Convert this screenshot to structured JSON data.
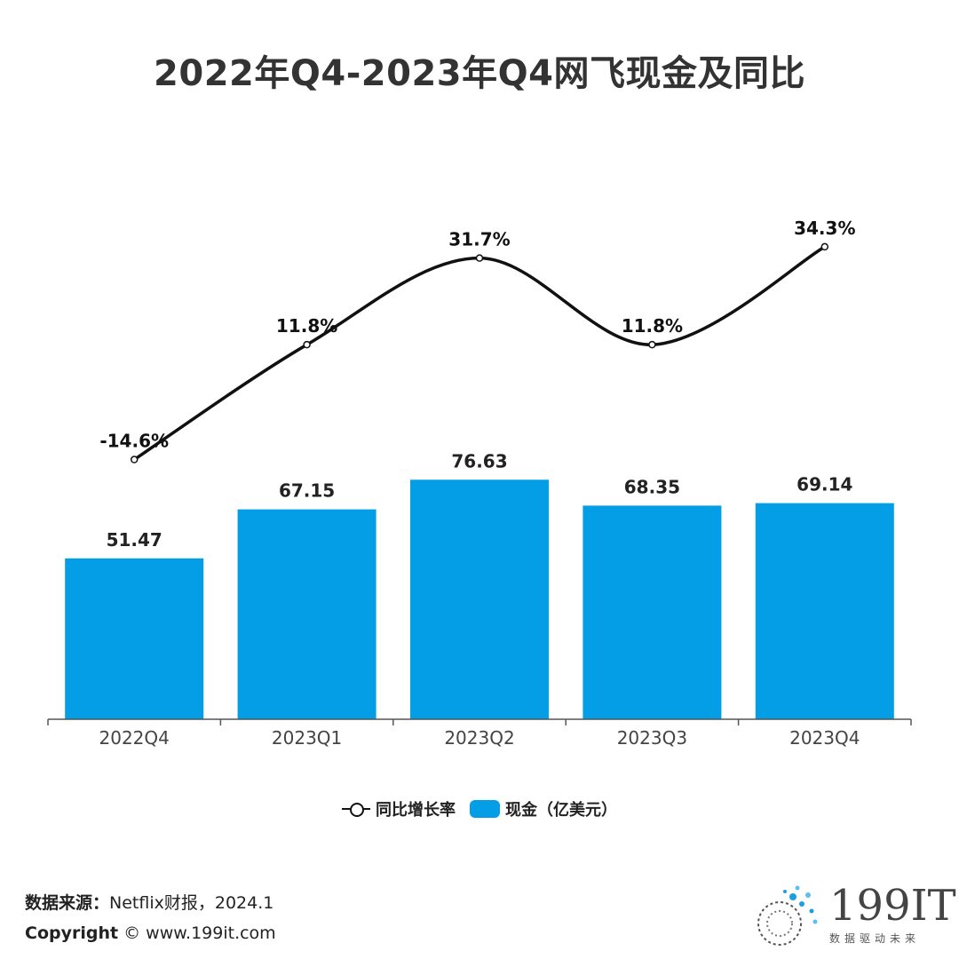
{
  "title": "2022年Q4-2023年Q4网飞现金及同比",
  "chart_data": {
    "type": "bar",
    "categories": [
      "2022Q4",
      "2023Q1",
      "2023Q2",
      "2023Q3",
      "2023Q4"
    ],
    "series": [
      {
        "name": "现金（亿美元）",
        "type": "bar",
        "values": [
          51.47,
          67.15,
          76.63,
          68.35,
          69.14
        ],
        "labels": [
          "51.47",
          "67.15",
          "76.63",
          "68.35",
          "69.14"
        ],
        "color": "#039ee6"
      },
      {
        "name": "同比增长率",
        "type": "line",
        "values": [
          -14.6,
          11.8,
          31.7,
          11.8,
          34.3
        ],
        "labels": [
          "-14.6%",
          "11.8%",
          "31.7%",
          "11.8%",
          "34.3%"
        ],
        "color": "#111111"
      }
    ],
    "legend": "bottom"
  },
  "legend": {
    "line_label": "同比增长率",
    "bar_label": "现金（亿美元）"
  },
  "footer": {
    "source_label": "数据来源：",
    "source_text": "Netflix财报，2024.1",
    "copyright_label": "Copyright",
    "copyright_text": "© www.199it.com"
  },
  "logo": {
    "text": "199IT",
    "subtitle": "数据驱动未来"
  }
}
